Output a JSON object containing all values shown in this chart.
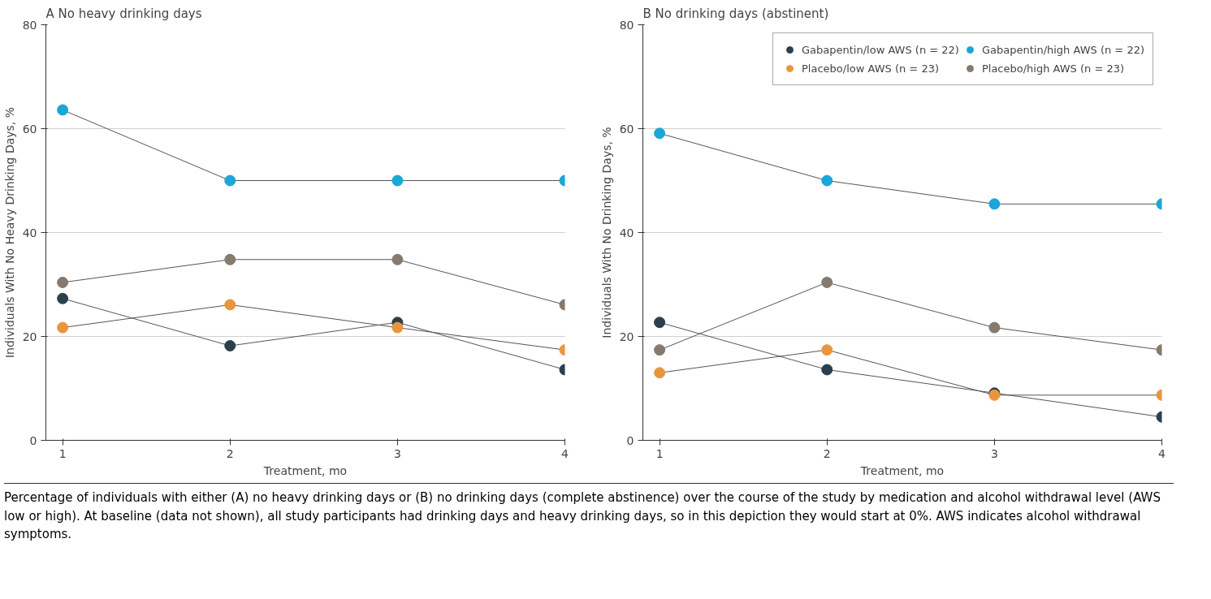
{
  "chart_data": [
    {
      "type": "line",
      "title": "No heavy drinking days",
      "annotations": [
        "A"
      ],
      "xlabel": "Treatment, mo",
      "ylabel": "Individuals With No Heavy Drinking Days, %",
      "x": [
        1,
        2,
        3,
        4
      ],
      "xlim": [
        0.9,
        4.0
      ],
      "xticks": [
        1,
        2,
        3,
        4
      ],
      "ylim": [
        0,
        80
      ],
      "yticks": [
        0,
        20,
        40,
        60,
        80
      ],
      "grid": "y",
      "marker": "circle",
      "legend": false,
      "series": [
        {
          "color": "#2b3f4c",
          "values": [
            27.3,
            18.2,
            22.7,
            13.6
          ]
        },
        {
          "color": "#1aa7d8",
          "values": [
            63.6,
            50.0,
            50.0,
            50.0
          ]
        },
        {
          "color": "#e8963e",
          "values": [
            21.7,
            26.1,
            21.7,
            17.4
          ]
        },
        {
          "color": "#857a6e",
          "values": [
            30.4,
            34.8,
            34.8,
            26.1
          ]
        }
      ]
    },
    {
      "type": "line",
      "title": "No drinking days (abstinent)",
      "annotations": [
        "B",
        "Percentage of individuals with either (A) no heavy drinking days or (B) no drinking days (complete abstinence) over the course of the study by medication and alcohol withdrawal level (AWS low or high). At baseline (data not shown), all study participants had drinking days and heavy drinking days, so in this depiction they would start at 0%. AWS indicates alcohol withdrawal symptoms."
      ],
      "xlabel": "Treatment, mo",
      "ylabel": "Individuals With No Drinking Days, %",
      "x": [
        1,
        2,
        3,
        4
      ],
      "xlim": [
        0.9,
        4.0
      ],
      "xticks": [
        1,
        2,
        3,
        4
      ],
      "ylim": [
        0,
        80
      ],
      "yticks": [
        0,
        20,
        40,
        60,
        80
      ],
      "grid": "y",
      "marker": "circle",
      "legend": "top right",
      "series": [
        {
          "name": "Gabapentin/low AWS (n = 22)",
          "color": "#2b3f4c",
          "values": [
            22.7,
            13.6,
            9.1,
            4.5
          ]
        },
        {
          "name": "Gabapentin/high AWS (n = 22)",
          "color": "#1aa7d8",
          "values": [
            59.1,
            50.0,
            45.5,
            45.5
          ]
        },
        {
          "name": "Placebo/low AWS (n = 23)",
          "color": "#e8963e",
          "values": [
            13.0,
            17.4,
            8.7,
            8.7
          ]
        },
        {
          "name": "Placebo/high AWS (n = 23)",
          "color": "#857a6e",
          "values": [
            17.4,
            30.4,
            21.7,
            17.4
          ]
        }
      ]
    }
  ]
}
